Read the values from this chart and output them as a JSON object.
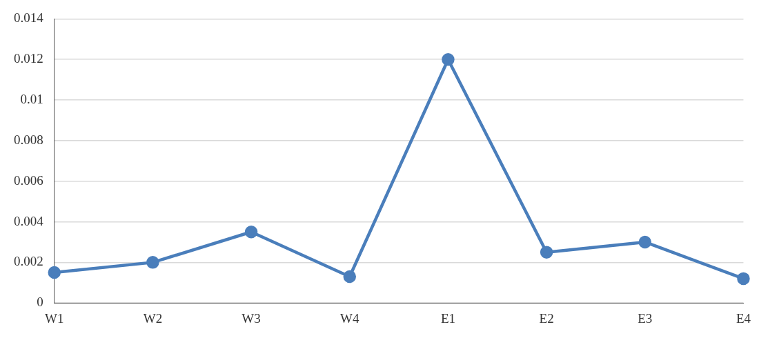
{
  "chart_data": {
    "type": "line",
    "categories": [
      "W1",
      "W2",
      "W3",
      "W4",
      "E1",
      "E2",
      "E3",
      "E4"
    ],
    "series": [
      {
        "color": "#4a7ebb",
        "values": [
          0.0015,
          0.002,
          0.0035,
          0.0013,
          0.012,
          0.0025,
          0.003,
          0.0012
        ]
      }
    ],
    "ylim": [
      0,
      0.014
    ],
    "yticks": [
      0,
      0.002,
      0.004,
      0.006,
      0.008,
      0.01,
      0.012,
      0.014
    ],
    "grid": "y",
    "legend": false,
    "marker": "circle",
    "line_style": "solid"
  }
}
